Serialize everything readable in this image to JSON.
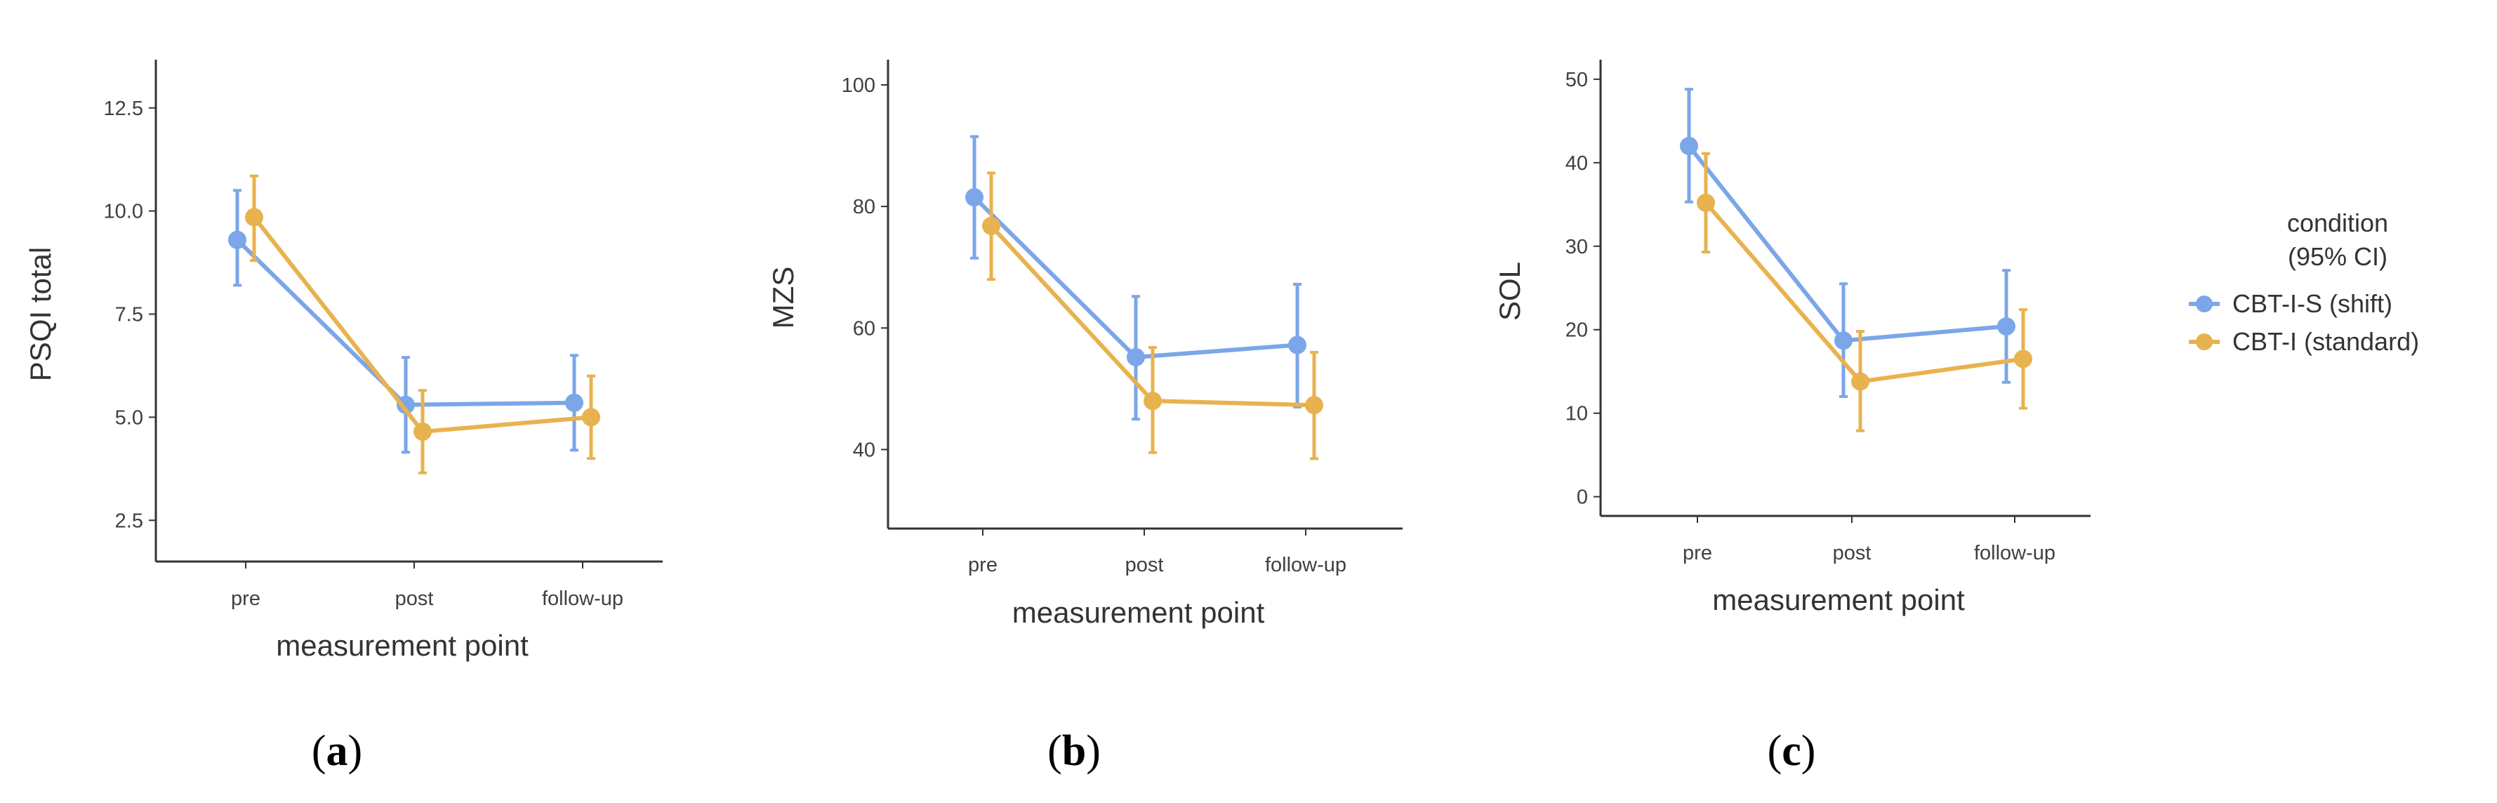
{
  "legend": {
    "title_line1": "condition",
    "title_line2": "(95% CI)",
    "series": [
      {
        "name": "CBT-I-S (shift)",
        "color": "#7ba6e8"
      },
      {
        "name": "CBT-I (standard)",
        "color": "#e8b24e"
      }
    ]
  },
  "chart_data": [
    {
      "type": "line",
      "panel_label": "a",
      "categories": [
        "pre",
        "post",
        "follow-up"
      ],
      "xlabel": "measurement point",
      "ylabel": "PSQI total",
      "ylim": [
        1.5,
        13.5
      ],
      "yticks": [
        2.5,
        5.0,
        7.5,
        10.0,
        12.5
      ],
      "ytick_labels": [
        "2.5",
        "5.0",
        "7.5",
        "10.0",
        "12.5"
      ],
      "series": [
        {
          "name": "CBT-I-S (shift)",
          "values": [
            9.3,
            5.3,
            5.35
          ],
          "ci_low": [
            8.2,
            4.15,
            4.2
          ],
          "ci_high": [
            10.5,
            6.45,
            6.5
          ]
        },
        {
          "name": "CBT-I (standard)",
          "values": [
            9.85,
            4.65,
            5.0
          ],
          "ci_low": [
            8.8,
            3.65,
            4.0
          ],
          "ci_high": [
            10.85,
            5.65,
            6.0
          ]
        }
      ]
    },
    {
      "type": "line",
      "panel_label": "b",
      "categories": [
        "pre",
        "post",
        "follow-up"
      ],
      "xlabel": "measurement point",
      "ylabel": "MZS",
      "ylim": [
        27,
        103
      ],
      "yticks": [
        40,
        60,
        80,
        100
      ],
      "ytick_labels": [
        "40",
        "60",
        "80",
        "100"
      ],
      "series": [
        {
          "name": "CBT-I-S (shift)",
          "values": [
            81.5,
            55.2,
            57.2
          ],
          "ci_low": [
            71.5,
            45.0,
            47.0
          ],
          "ci_high": [
            91.5,
            65.2,
            67.2
          ]
        },
        {
          "name": "CBT-I (standard)",
          "values": [
            76.8,
            48.0,
            47.3
          ],
          "ci_low": [
            68.0,
            39.5,
            38.5
          ],
          "ci_high": [
            85.5,
            56.8,
            56.0
          ]
        }
      ]
    },
    {
      "type": "line",
      "panel_label": "c",
      "categories": [
        "pre",
        "post",
        "follow-up"
      ],
      "xlabel": "measurement point",
      "ylabel": "SOL",
      "ylim": [
        -2.3,
        51.5
      ],
      "yticks": [
        0,
        10,
        20,
        30,
        40,
        50
      ],
      "ytick_labels": [
        "0",
        "10",
        "20",
        "30",
        "40",
        "50"
      ],
      "series": [
        {
          "name": "CBT-I-S (shift)",
          "values": [
            42.0,
            18.7,
            20.4
          ],
          "ci_low": [
            35.3,
            12.0,
            13.7
          ],
          "ci_high": [
            48.8,
            25.5,
            27.1
          ]
        },
        {
          "name": "CBT-I (standard)",
          "values": [
            35.2,
            13.8,
            16.5
          ],
          "ci_low": [
            29.3,
            7.9,
            10.6
          ],
          "ci_high": [
            41.1,
            19.8,
            22.4
          ]
        }
      ]
    }
  ]
}
